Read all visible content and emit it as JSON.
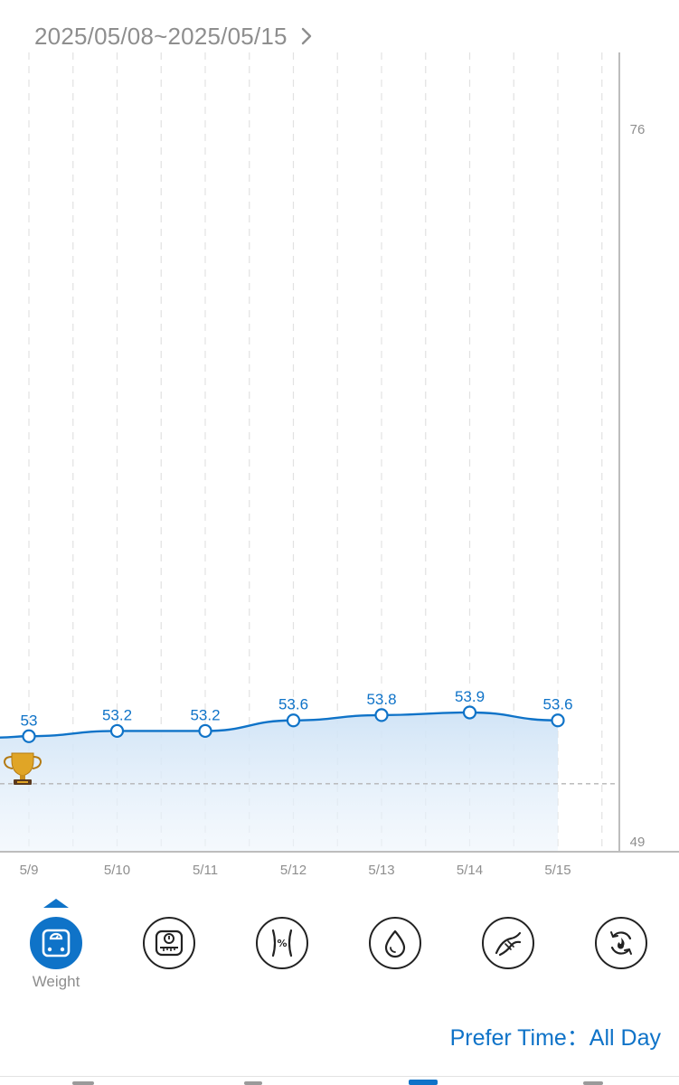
{
  "header": {
    "date_range": "2025/05/08~2025/05/15"
  },
  "chart_data": {
    "type": "line",
    "x": [
      "5/9",
      "5/10",
      "5/11",
      "5/12",
      "5/13",
      "5/14",
      "5/15"
    ],
    "series": [
      {
        "values": [
          53,
          53.2,
          53.2,
          53.6,
          53.8,
          53.9,
          53.6
        ],
        "labels": [
          "53",
          "53.2",
          "53.2",
          "53.6",
          "53.8",
          "53.9",
          "53.6"
        ]
      }
    ],
    "ylim": [
      49,
      76
    ],
    "y_tick_labels": [
      "76",
      "49"
    ],
    "reference_line": 51.2,
    "grid": "vertical dashed",
    "area_fill": true,
    "marker": "open-circle",
    "annotation_icon": "trophy-icon",
    "line_color": "#0f73c8"
  },
  "metrics": [
    {
      "id": "weight",
      "icon": "weight-scale-icon",
      "label": "Weight",
      "active": true
    },
    {
      "id": "bmi",
      "icon": "bmi-scale-icon",
      "active": false
    },
    {
      "id": "body-fat",
      "icon": "body-fat-icon",
      "active": false
    },
    {
      "id": "water",
      "icon": "water-drop-icon",
      "active": false
    },
    {
      "id": "muscle",
      "icon": "muscle-icon",
      "active": false
    },
    {
      "id": "metabolism",
      "icon": "metabolism-icon",
      "active": false
    }
  ],
  "footer": {
    "prefer_time": "Prefer Time：All Day"
  },
  "colors": {
    "accent": "#0f73c8",
    "muted_text": "#8e8e8e"
  }
}
